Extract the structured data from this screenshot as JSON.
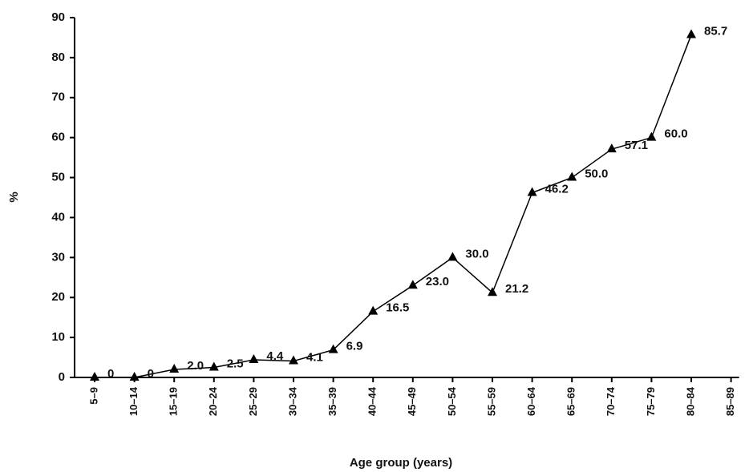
{
  "chart_data": {
    "type": "line",
    "xlabel": "Age group (years)",
    "ylabel": "%",
    "categories": [
      "5–9",
      "10–14",
      "15–19",
      "20–24",
      "25–29",
      "30–34",
      "35–39",
      "40–44",
      "45–49",
      "50–54",
      "55–59",
      "60–64",
      "65–69",
      "70–74",
      "75–79",
      "80–84",
      "85–89"
    ],
    "series": [
      {
        "color": "#000000",
        "values": [
          0,
          0,
          2.0,
          2.5,
          4.4,
          4.1,
          6.9,
          16.5,
          23.0,
          30.0,
          21.2,
          46.2,
          50.0,
          57.1,
          60.0,
          85.7,
          null
        ],
        "value_labels": [
          "0",
          "0",
          "2.0",
          "2.5",
          "4.4",
          "4.1",
          "6.9",
          "16.5",
          "23.0",
          "30.0",
          "21.2",
          "46.2",
          "50.0",
          "57.1",
          "60.0",
          "85.7",
          null
        ]
      }
    ],
    "ylim": [
      0,
      90
    ],
    "yticks": [
      0,
      10,
      20,
      30,
      40,
      50,
      60,
      70,
      80,
      90
    ],
    "marker": "triangle"
  }
}
